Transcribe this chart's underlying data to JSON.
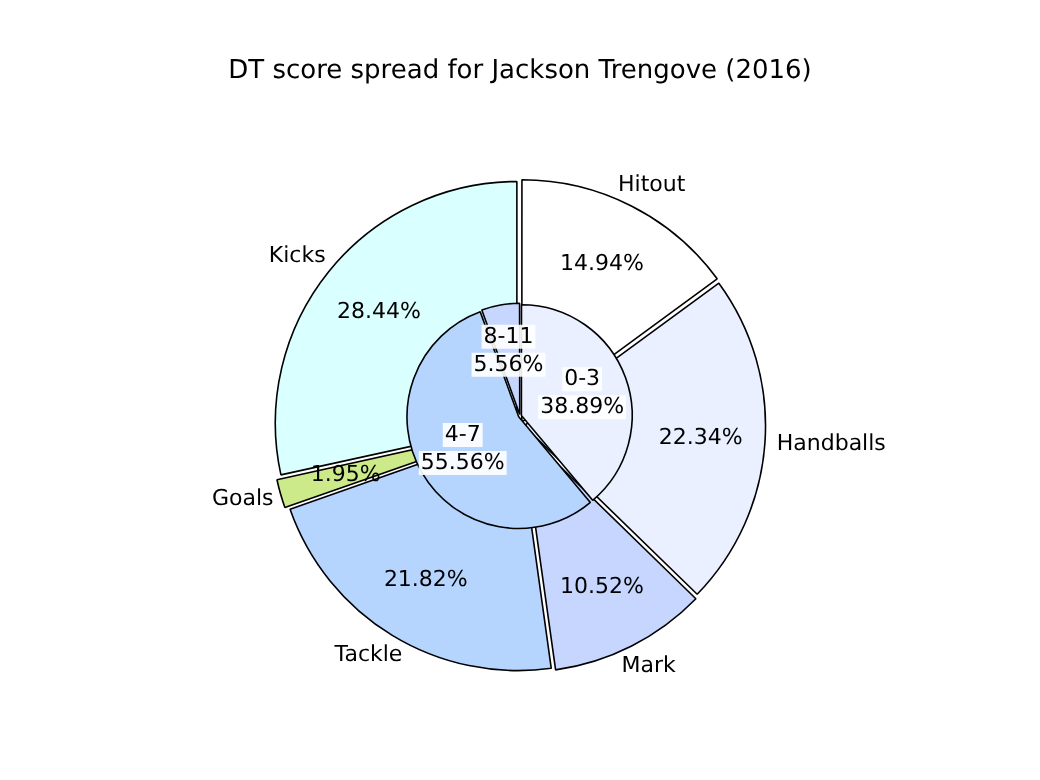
{
  "chart_data": [
    {
      "type": "pie",
      "title": "DT score spread for Jackson Trengove (2016)",
      "categories": [
        "Hitout",
        "Handballs",
        "Mark",
        "Tackle",
        "Goals",
        "Kicks"
      ],
      "values": [
        14.94,
        22.34,
        10.52,
        21.82,
        1.95,
        28.44
      ],
      "colors": [
        "#ffffff",
        "#eaf0ff",
        "#c6d6ff",
        "#b5d5ff",
        "#cdea8a",
        "#d9ffff"
      ],
      "value_labels": [
        "14.94%",
        "22.34%",
        "10.52%",
        "21.82%",
        "1.95%",
        "28.44%"
      ],
      "legend": false
    },
    {
      "type": "pie",
      "categories": [
        "0-3",
        "4-7",
        "8-11"
      ],
      "values": [
        38.89,
        55.56,
        5.56
      ],
      "colors": [
        "#eaf0ff",
        "#b5d5ff",
        "#c6d6ff"
      ],
      "value_labels": [
        "38.89%",
        "55.56%",
        "5.56%"
      ],
      "legend": false
    }
  ]
}
